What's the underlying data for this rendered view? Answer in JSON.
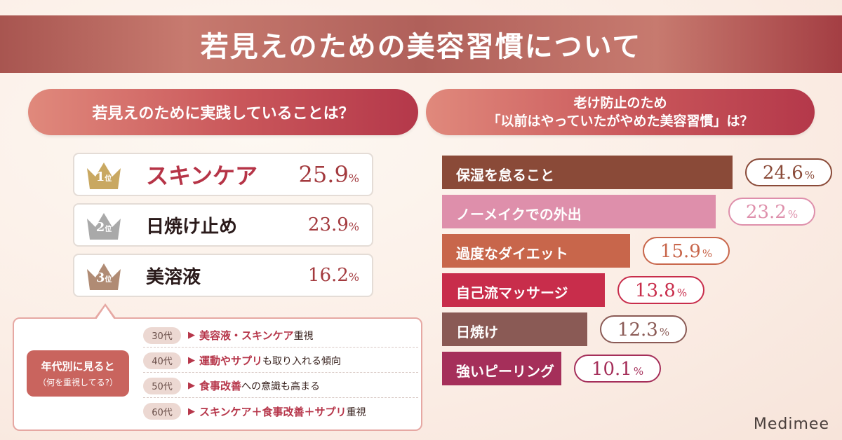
{
  "title": "若見えのための美容習慣について",
  "left": {
    "heading": "若見えのために実践していることは？",
    "ranks": [
      {
        "num": "1",
        "suffix": "位",
        "label": "スキンケア",
        "value": "25.9",
        "unit": "%",
        "color": "#c9a861"
      },
      {
        "num": "2",
        "suffix": "位",
        "label": "日焼け止め",
        "value": "23.9",
        "unit": "%",
        "color": "#a9a9a9"
      },
      {
        "num": "3",
        "suffix": "位",
        "label": "美溶液",
        "value": "16.2",
        "unit": "%",
        "color": "#b08b74"
      }
    ],
    "age_badge_line1": "年代別に見ると",
    "age_badge_line2": "（何を重視してる?）",
    "age_rows": [
      {
        "tag": "30代",
        "arrow": "▶",
        "highlight": "美容液・スキンケア",
        "rest": "重視"
      },
      {
        "tag": "40代",
        "arrow": "▶",
        "highlight": "運動やサプリ",
        "rest": "も取り入れる傾向"
      },
      {
        "tag": "50代",
        "arrow": "▶",
        "highlight": "食事改善",
        "rest": "への意識も高まる"
      },
      {
        "tag": "60代",
        "arrow": "▶",
        "highlight": "スキンケア＋食事改善＋サプリ",
        "rest": "重視"
      }
    ]
  },
  "right": {
    "heading_line1": "老け防止のため",
    "heading_line2": "「以前はやっていたがやめた美容習慣」は？"
  },
  "chart_data": {
    "type": "bar",
    "orientation": "horizontal",
    "categories": [
      "保湿を怠ること",
      "ノーメイクでの外出",
      "過度なダイエット",
      "自己流マッサージ",
      "日焼け",
      "強いピーリング"
    ],
    "values": [
      24.6,
      23.2,
      15.9,
      13.8,
      12.3,
      10.1
    ],
    "value_labels": [
      "24.6",
      "23.2",
      "15.9",
      "13.8",
      "12.3",
      "10.1"
    ],
    "unit": "%",
    "colors": [
      "#8a4a38",
      "#de8fab",
      "#c8664b",
      "#c82d4b",
      "#8a5a55",
      "#a52f5a"
    ]
  },
  "brand": "Medimee"
}
